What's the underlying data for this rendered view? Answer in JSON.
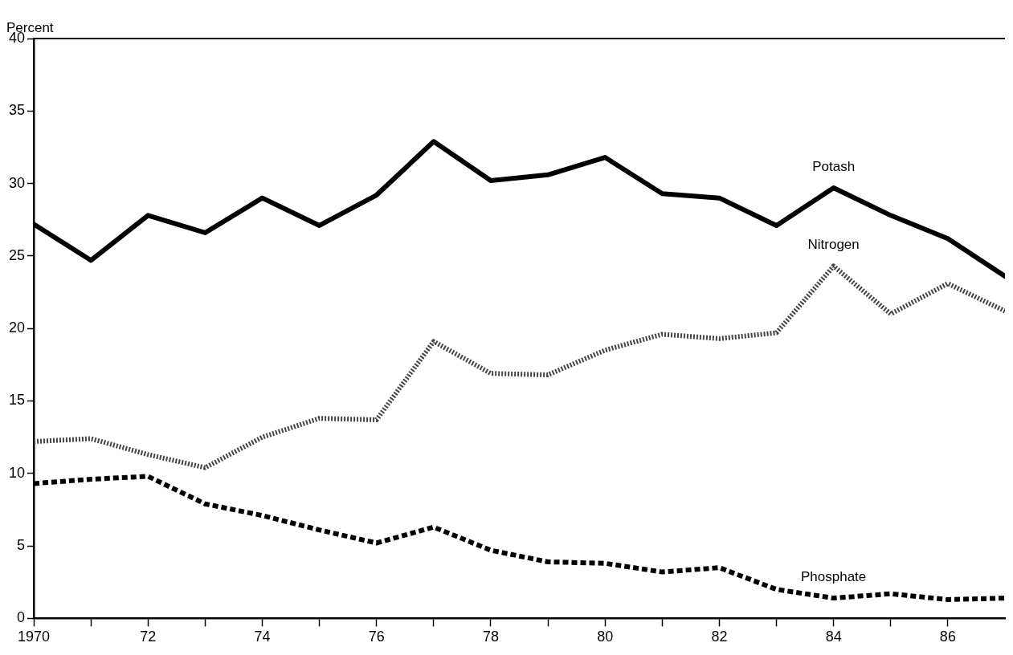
{
  "chart_data": {
    "type": "line",
    "ylabel": "Percent",
    "x": [
      1970,
      1971,
      1972,
      1973,
      1974,
      1975,
      1976,
      1977,
      1978,
      1979,
      1980,
      1981,
      1982,
      1983,
      1984,
      1985,
      1986,
      1987
    ],
    "series": [
      {
        "name": "Potash",
        "color": "#000000",
        "line_style": "solid",
        "values": [
          27.2,
          24.7,
          27.8,
          26.6,
          29.0,
          27.1,
          29.2,
          32.9,
          30.2,
          30.6,
          31.8,
          29.3,
          29.0,
          27.1,
          29.7,
          27.8,
          26.2,
          23.6
        ]
      },
      {
        "name": "Nitrogen",
        "color": "#444444",
        "line_style": "dotted",
        "values": [
          12.2,
          12.4,
          11.3,
          10.4,
          12.5,
          13.8,
          13.7,
          19.1,
          16.9,
          16.8,
          18.5,
          19.6,
          19.3,
          19.7,
          24.3,
          21.0,
          23.1,
          21.2
        ]
      },
      {
        "name": "Phosphate",
        "color": "#000000",
        "line_style": "dashed",
        "values": [
          9.3,
          9.6,
          9.8,
          7.9,
          7.1,
          6.1,
          5.2,
          6.3,
          4.7,
          3.9,
          3.8,
          3.2,
          3.5,
          2.0,
          1.4,
          1.7,
          1.3,
          1.4
        ]
      }
    ],
    "xlim": [
      1970,
      1987
    ],
    "xticks": [
      {
        "value": 1970,
        "label": "1970"
      },
      {
        "value": 1971,
        "label": null
      },
      {
        "value": 1972,
        "label": "72"
      },
      {
        "value": 1973,
        "label": null
      },
      {
        "value": 1974,
        "label": "74"
      },
      {
        "value": 1975,
        "label": null
      },
      {
        "value": 1976,
        "label": "76"
      },
      {
        "value": 1977,
        "label": null
      },
      {
        "value": 1978,
        "label": "78"
      },
      {
        "value": 1979,
        "label": null
      },
      {
        "value": 1980,
        "label": "80"
      },
      {
        "value": 1981,
        "label": null
      },
      {
        "value": 1982,
        "label": "82"
      },
      {
        "value": 1983,
        "label": null
      },
      {
        "value": 1984,
        "label": "84"
      },
      {
        "value": 1985,
        "label": null
      },
      {
        "value": 1986,
        "label": "86"
      }
    ],
    "ylim": [
      0,
      40
    ],
    "yticks": [
      0,
      5,
      10,
      15,
      20,
      25,
      30,
      35,
      40
    ],
    "grid": false,
    "legend": false,
    "marker": "none"
  }
}
